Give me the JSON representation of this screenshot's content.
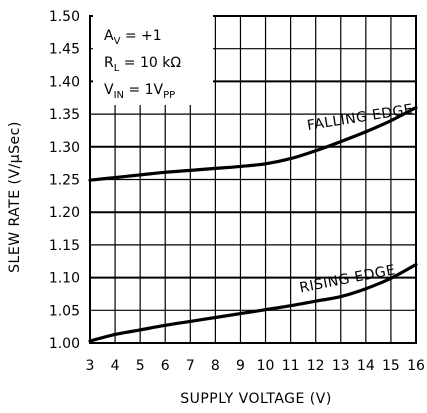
{
  "chart_data": {
    "type": "line",
    "title": "",
    "xlabel": "SUPPLY VOLTAGE (V)",
    "ylabel": "SLEW RATE (V/μSec)",
    "xlim": [
      3,
      16
    ],
    "ylim": [
      1.0,
      1.5
    ],
    "grid": true,
    "x_ticks": [
      "3",
      "4",
      "5",
      "6",
      "7",
      "8",
      "9",
      "10",
      "11",
      "12",
      "13",
      "14",
      "15",
      "16"
    ],
    "y_ticks": [
      "1.00",
      "1.05",
      "1.10",
      "1.15",
      "1.20",
      "1.25",
      "1.30",
      "1.35",
      "1.40",
      "1.45",
      "1.50"
    ],
    "conditions": [
      {
        "main": "A",
        "sub": "V",
        "rest": " = +1"
      },
      {
        "main": "R",
        "sub": "L",
        "rest": " = 10 kΩ"
      },
      {
        "main": "V",
        "sub": "IN",
        "rest": " = 1V",
        "sub2": "PP"
      }
    ],
    "series": [
      {
        "name": "FALLING EDGE",
        "x": [
          3,
          4,
          5,
          6,
          7,
          8,
          9,
          10,
          11,
          12,
          13,
          14,
          15,
          16
        ],
        "y": [
          1.249,
          1.253,
          1.257,
          1.261,
          1.264,
          1.267,
          1.27,
          1.274,
          1.282,
          1.294,
          1.308,
          1.323,
          1.34,
          1.36
        ]
      },
      {
        "name": "RISING EDGE",
        "x": [
          3,
          4,
          5,
          6,
          7,
          8,
          9,
          10,
          11,
          12,
          13,
          14,
          15,
          16
        ],
        "y": [
          1.003,
          1.013,
          1.02,
          1.027,
          1.033,
          1.039,
          1.045,
          1.051,
          1.057,
          1.064,
          1.071,
          1.083,
          1.099,
          1.12
        ]
      }
    ]
  }
}
